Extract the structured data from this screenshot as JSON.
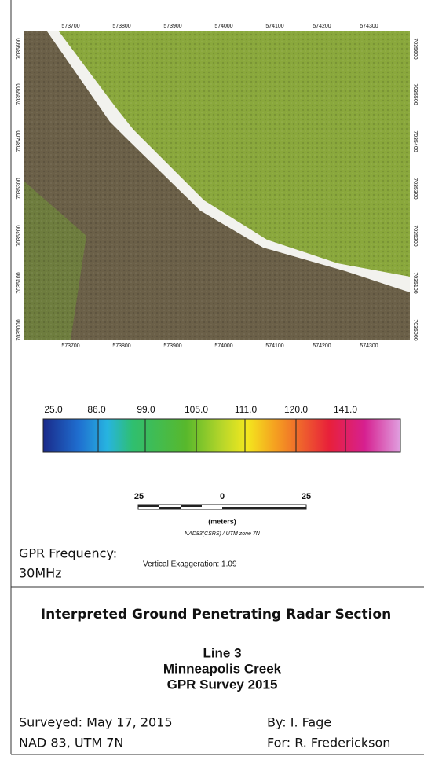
{
  "map": {
    "top_eastings": [
      "573700",
      "573800",
      "573900",
      "574000",
      "574100",
      "574200",
      "574300"
    ],
    "bottom_eastings": [
      "573700",
      "573800",
      "573900",
      "574000",
      "574100",
      "574200",
      "574300"
    ],
    "northings": [
      "7035600",
      "7035500",
      "7035400",
      "7035300",
      "7035200",
      "7035100",
      "7035000"
    ]
  },
  "color_scale": {
    "labels": [
      "25.0",
      "86.0",
      "99.0",
      "105.0",
      "111.0",
      "120.0",
      "141.0"
    ]
  },
  "scale_bar": {
    "left": "25",
    "middle": "0",
    "right": "25",
    "unit": "(meters)",
    "datum": "NAD83(CSRS) / UTM zone 7N"
  },
  "info": {
    "frequency_label": "GPR Frequency:",
    "frequency": "30MHz",
    "exaggeration": "Vertical Exaggeration: 1.09"
  },
  "title_block": {
    "title": "Interpreted Ground Penetrating Radar Section",
    "line": "Line 3",
    "location": "Minneapolis Creek",
    "survey": "GPR Survey 2015",
    "surveyed": "Surveyed: May 17, 2015",
    "by": "By: I. Fage",
    "datum": "NAD 83, UTM 7N",
    "for": "For: R. Frederickson"
  }
}
